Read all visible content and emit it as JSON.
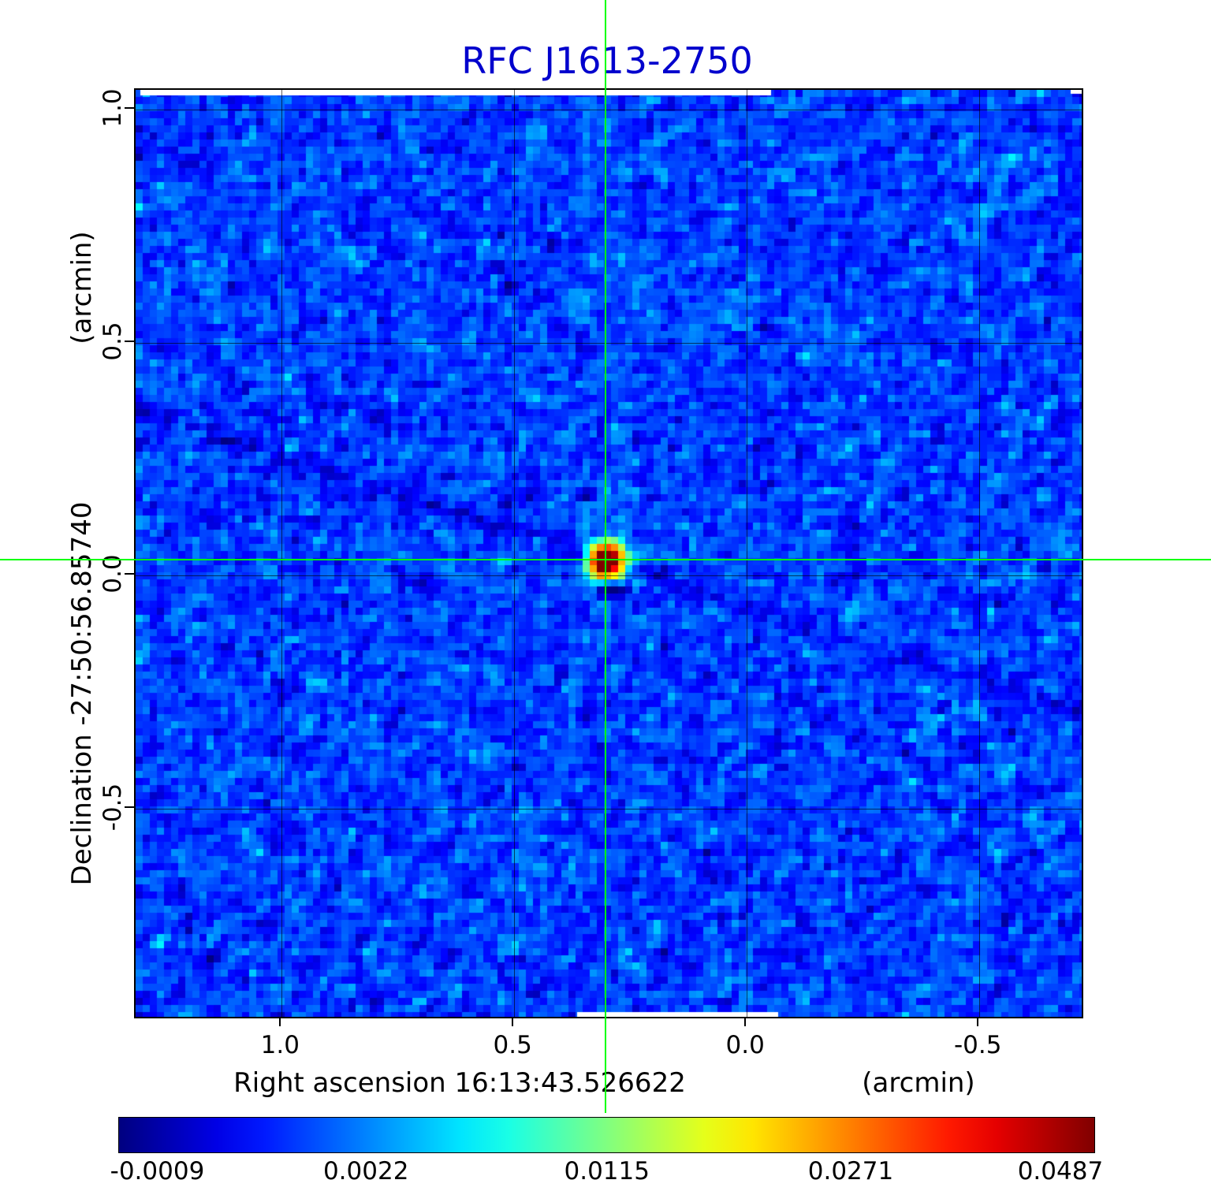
{
  "title": "RFC J1613-2750",
  "colors": {
    "title": "#0000cd",
    "crosshair": "#00ff00",
    "frame": "#000000",
    "background": "#ffffff"
  },
  "y_axis": {
    "unit_label": "(arcmin)",
    "axis_label": "Declination  -27:50:56.85740",
    "ticks": [
      "1.0",
      "0.5",
      "0.0",
      "-0.5"
    ]
  },
  "x_axis": {
    "axis_label": "Right ascension  16:13:43.526622",
    "unit_label": "(arcmin)",
    "ticks": [
      "1.0",
      "0.5",
      "0.0",
      "-0.5"
    ]
  },
  "colorbar": {
    "colormap": "jet",
    "tick_labels": [
      "-0.0009",
      "0.0022",
      "0.0115",
      "0.0271",
      "0.0487"
    ]
  },
  "chart_data": {
    "type": "heatmap",
    "title": "RFC J1613-2750",
    "xlabel": "Right ascension 16:13:43.526622 (arcmin)",
    "ylabel": "Declination -27:50:56.85740 (arcmin)",
    "x_range_arcmin": [
      1.314,
      -0.72
    ],
    "y_range_arcmin": [
      -0.947,
      1.042
    ],
    "x_ticks": [
      1.0,
      0.5,
      0.0,
      -0.5
    ],
    "y_ticks": [
      1.0,
      0.5,
      0.0,
      -0.5
    ],
    "grid": true,
    "colormap": "jet",
    "colorbar_levels": [
      -0.0009,
      0.0022,
      0.0115,
      0.0271,
      0.0487
    ],
    "value_min": -0.0009,
    "value_max": 0.0487,
    "background_noise_level": 0.002,
    "source": {
      "x_arcmin": 0.3,
      "y_arcmin": 0.03,
      "peak_value": 0.0487,
      "description": "compact bright point source at crosshair intersection with jet-colormap halo and dark sidelobe streaks"
    },
    "crosshair": {
      "x_arcmin": 0.3,
      "y_arcmin": 0.03,
      "color": "#00ff00"
    }
  }
}
